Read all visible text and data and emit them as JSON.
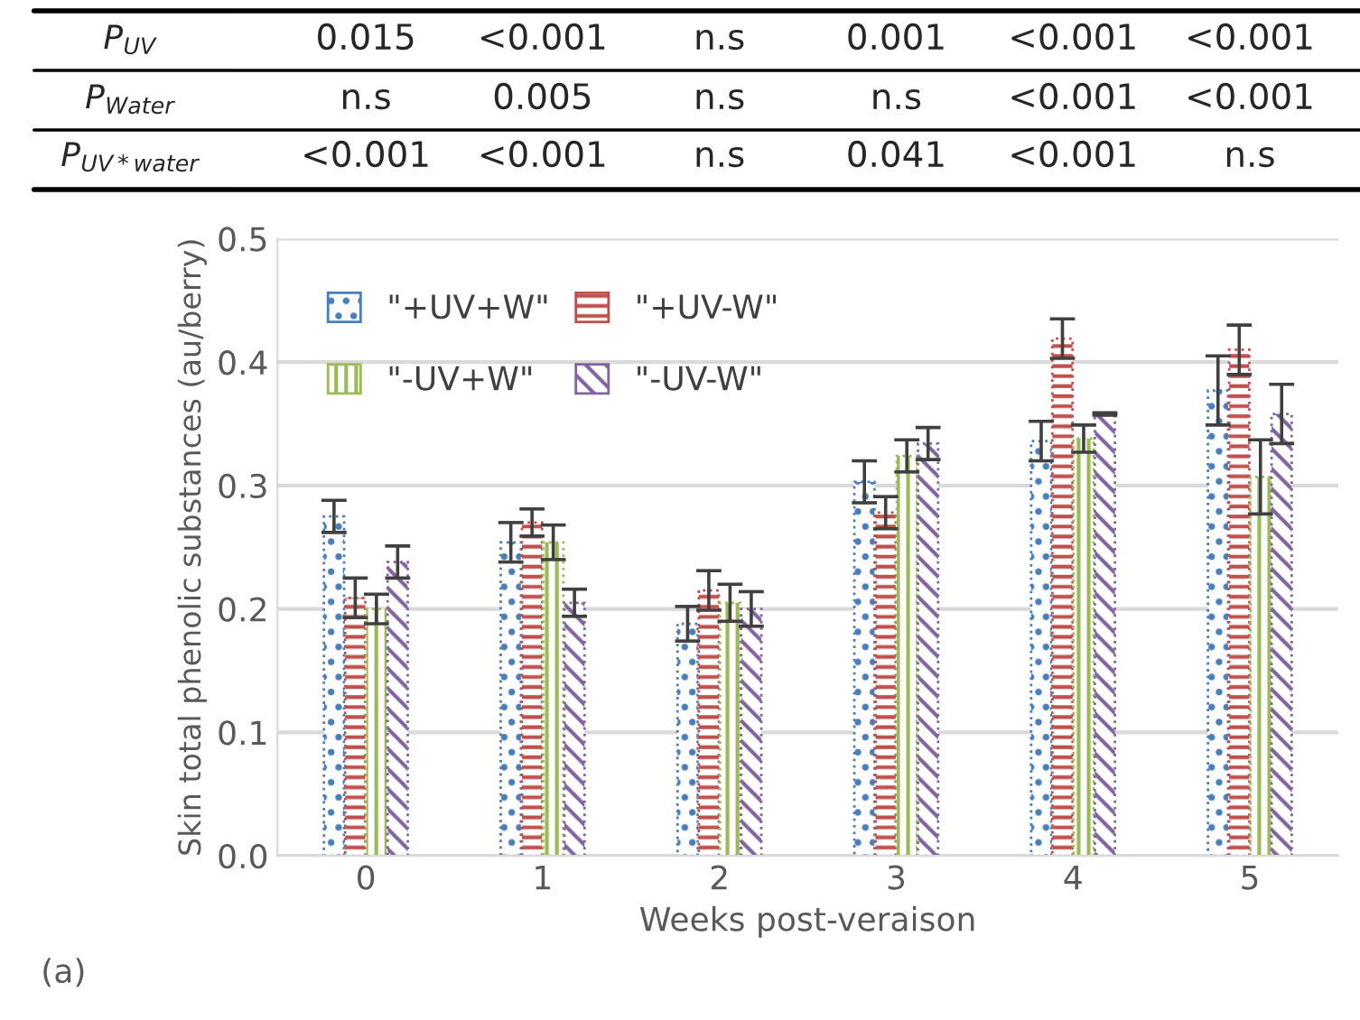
{
  "chart_data": {
    "type": "bar",
    "ylabel": "Skin total phenolic substances (au/berry)",
    "xlabel": "Weeks post-veraison",
    "categories": [
      "0",
      "1",
      "2",
      "3",
      "4",
      "5"
    ],
    "series": [
      {
        "name": "\"+UV+W\"",
        "color": "#4a7ebb",
        "values": [
          0.275,
          0.254,
          0.188,
          0.303,
          0.336,
          0.377
        ],
        "errors": [
          0.013,
          0.016,
          0.014,
          0.017,
          0.016,
          0.028
        ]
      },
      {
        "name": "\"+UV-W\"",
        "color": "#c0504d",
        "values": [
          0.209,
          0.27,
          0.215,
          0.278,
          0.419,
          0.41
        ],
        "errors": [
          0.016,
          0.011,
          0.016,
          0.013,
          0.016,
          0.02
        ]
      },
      {
        "name": "\"-UV+W\"",
        "color": "#9bbb59",
        "values": [
          0.2,
          0.254,
          0.205,
          0.324,
          0.338,
          0.307
        ],
        "errors": [
          0.012,
          0.014,
          0.015,
          0.013,
          0.011,
          0.03
        ]
      },
      {
        "name": "\"-UV-W\"",
        "color": "#8064a2",
        "values": [
          0.238,
          0.205,
          0.2,
          0.334,
          0.358,
          0.358
        ],
        "errors": [
          0.013,
          0.011,
          0.014,
          0.013,
          0.001,
          0.024
        ]
      }
    ],
    "ylim": [
      0,
      0.5
    ],
    "yticks": [
      {
        "value": 0,
        "label": "0.0"
      },
      {
        "value": 0.1,
        "label": "0.1"
      },
      {
        "value": 0.2,
        "label": "0.2"
      },
      {
        "value": 0.3,
        "label": "0.3"
      },
      {
        "value": 0.4,
        "label": "0.4"
      },
      {
        "value": 0.5,
        "label": "0.5"
      }
    ],
    "grid": "y",
    "legend": "top left",
    "annotations": [
      "P$_{UV}$",
      "0.015",
      "<0.001",
      "n.s",
      "0.001",
      "<0.001",
      "<0.001",
      "P$_{Water}$",
      "n.s",
      "0.005",
      "n.s",
      "n.s",
      "<0.001",
      "<0.001",
      "P$_{UV*water}$",
      "<0.001",
      "<0.001",
      "n.s",
      "0.041",
      "<0.001",
      "n.s",
      "(a)"
    ]
  }
}
